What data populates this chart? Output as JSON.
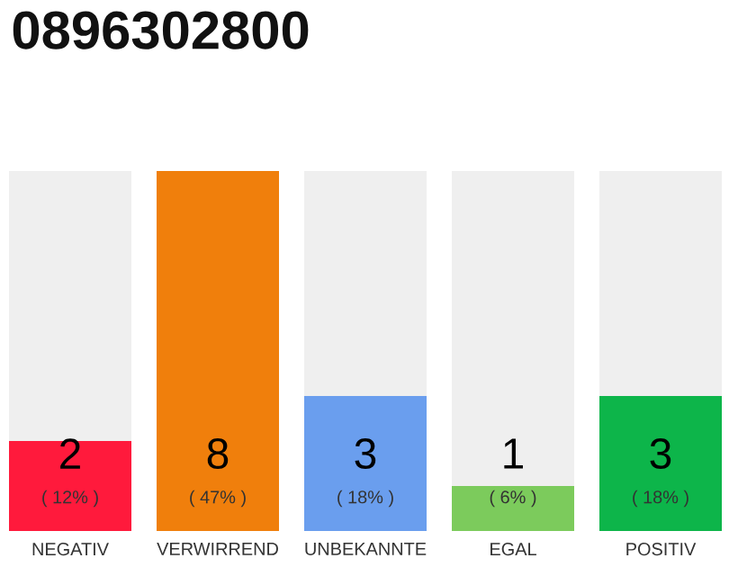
{
  "chart_data": {
    "type": "bar",
    "title": "0896302800",
    "categories": [
      "NEGATIV",
      "VERWIRREND",
      "UNBEKANNTE",
      "EGAL",
      "POSITIV"
    ],
    "values": [
      2,
      8,
      3,
      1,
      3
    ],
    "colors": [
      "#ff1a3c",
      "#f07f0c",
      "#6a9eee",
      "#7ccb5c",
      "#0db54a"
    ],
    "data_labels": true,
    "annotations": [
      "( 12% )",
      "( 47% )",
      "( 18% )",
      "( 6% )",
      "( 18% )"
    ],
    "tick_labels": "x"
  }
}
